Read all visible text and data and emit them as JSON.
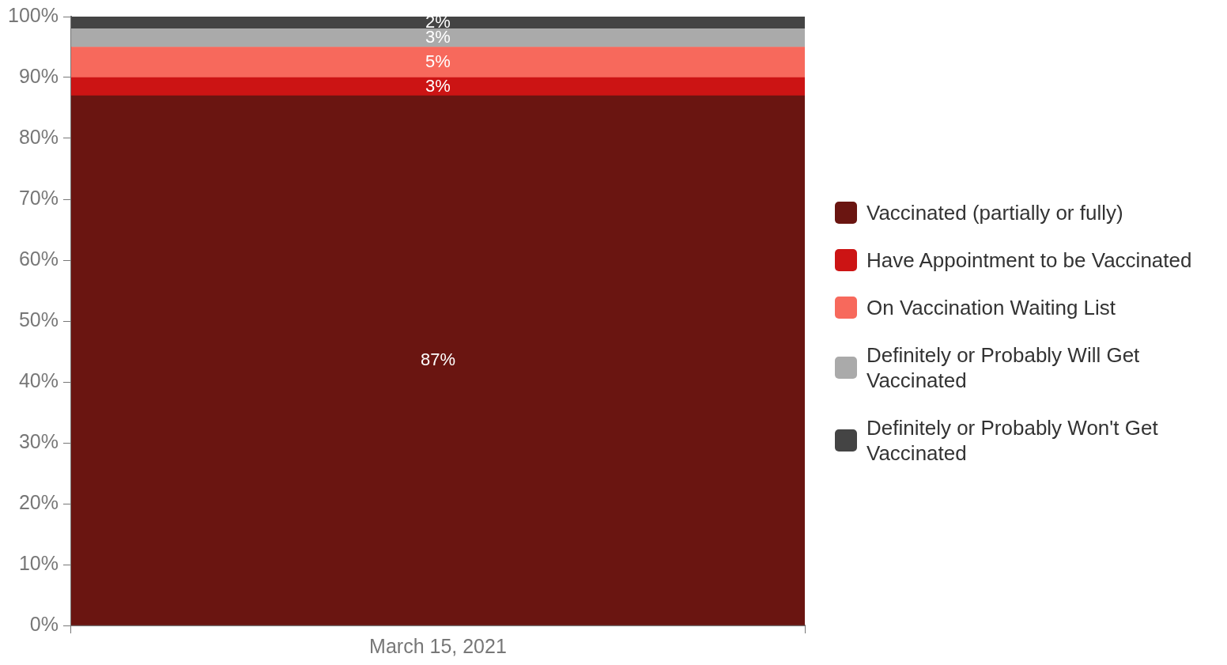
{
  "chart_data": {
    "type": "bar",
    "stacked": true,
    "categories": [
      "March 15, 2021"
    ],
    "series": [
      {
        "name": "Vaccinated (partially or fully)",
        "color": "#6a1511",
        "values": [
          87
        ],
        "value_labels": [
          "87%"
        ]
      },
      {
        "name": "Have Appointment to be Vaccinated",
        "color": "#cc1414",
        "values": [
          3
        ],
        "value_labels": [
          "3%"
        ]
      },
      {
        "name": "On Vaccination Waiting List",
        "color": "#f7695c",
        "values": [
          5
        ],
        "value_labels": [
          "5%"
        ]
      },
      {
        "name": "Definitely or Probably Will Get Vaccinated",
        "color": "#aaaaaa",
        "values": [
          3
        ],
        "value_labels": [
          "3%"
        ]
      },
      {
        "name": "Definitely or Probably Won't Get Vaccinated",
        "color": "#444444",
        "values": [
          2
        ],
        "value_labels": [
          "2%"
        ]
      }
    ],
    "ylim": [
      0,
      100
    ],
    "yticks": [
      {
        "value": 0,
        "label": "0%"
      },
      {
        "value": 10,
        "label": "10%"
      },
      {
        "value": 20,
        "label": "20%"
      },
      {
        "value": 30,
        "label": "30%"
      },
      {
        "value": 40,
        "label": "40%"
      },
      {
        "value": 50,
        "label": "50%"
      },
      {
        "value": 60,
        "label": "60%"
      },
      {
        "value": 70,
        "label": "70%"
      },
      {
        "value": 80,
        "label": "80%"
      },
      {
        "value": 90,
        "label": "90%"
      },
      {
        "value": 100,
        "label": "100%"
      }
    ],
    "grid": false,
    "legend": "right"
  }
}
